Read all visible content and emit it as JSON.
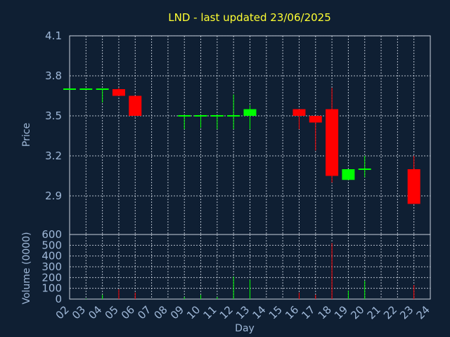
{
  "chart_data": {
    "type": "candlestick",
    "title": "LND - last updated 23/06/2025",
    "xlabel": "Day",
    "price_ylabel": "Price",
    "volume_ylabel": "Volume (0000)",
    "price_ylim": [
      3.55,
      4.1
    ],
    "price_yticks": [
      "4.1",
      "3.8",
      "3.5",
      "3.2",
      "2.9"
    ],
    "price_ytick_values": [
      4.1,
      3.8,
      3.5,
      3.2,
      2.9
    ],
    "volume_ylim": [
      0,
      600
    ],
    "volume_yticks": [
      "600",
      "500",
      "400",
      "300",
      "200",
      "100",
      "0"
    ],
    "volume_ytick_values": [
      600,
      500,
      400,
      300,
      200,
      100,
      0
    ],
    "x_ticks": [
      "02",
      "03",
      "04",
      "05",
      "06",
      "07",
      "08",
      "09",
      "10",
      "11",
      "12",
      "13",
      "14",
      "15",
      "16",
      "17",
      "18",
      "19",
      "20",
      "21",
      "22",
      "23",
      "24"
    ],
    "grid": true,
    "colors": {
      "up": "#00ff00",
      "down": "#ff0000",
      "title": "#ffff33",
      "background": "#0f1f33"
    },
    "candles": [
      {
        "day": "02",
        "open": 3.7,
        "high": 3.7,
        "low": 3.7,
        "close": 3.7,
        "volume": 0
      },
      {
        "day": "03",
        "open": 3.7,
        "high": 3.7,
        "low": 3.7,
        "close": 3.7,
        "volume": 5
      },
      {
        "day": "04",
        "open": 3.7,
        "high": 3.7,
        "low": 3.6,
        "close": 3.7,
        "volume": 40
      },
      {
        "day": "05",
        "open": 3.7,
        "high": 3.71,
        "low": 3.65,
        "close": 3.65,
        "volume": 90
      },
      {
        "day": "06",
        "open": 3.65,
        "high": 3.65,
        "low": 3.5,
        "close": 3.5,
        "volume": 60
      },
      {
        "day": "09",
        "open": 3.5,
        "high": 3.5,
        "low": 3.4,
        "close": 3.5,
        "volume": 20
      },
      {
        "day": "10",
        "open": 3.5,
        "high": 3.5,
        "low": 3.41,
        "close": 3.5,
        "volume": 40
      },
      {
        "day": "11",
        "open": 3.5,
        "high": 3.5,
        "low": 3.4,
        "close": 3.5,
        "volume": 20
      },
      {
        "day": "12",
        "open": 3.5,
        "high": 3.66,
        "low": 3.4,
        "close": 3.5,
        "volume": 210
      },
      {
        "day": "13",
        "open": 3.5,
        "high": 3.58,
        "low": 3.4,
        "close": 3.55,
        "volume": 180
      },
      {
        "day": "16",
        "open": 3.55,
        "high": 3.55,
        "low": 3.4,
        "close": 3.5,
        "volume": 60
      },
      {
        "day": "17",
        "open": 3.5,
        "high": 3.5,
        "low": 3.24,
        "close": 3.45,
        "volume": 40
      },
      {
        "day": "18",
        "open": 3.55,
        "high": 3.71,
        "low": 3.0,
        "close": 3.05,
        "volume": 520
      },
      {
        "day": "19",
        "open": 3.02,
        "high": 3.1,
        "low": 3.02,
        "close": 3.1,
        "volume": 80
      },
      {
        "day": "20",
        "open": 3.1,
        "high": 3.2,
        "low": 3.04,
        "close": 3.1,
        "volume": 170
      },
      {
        "day": "23",
        "open": 3.1,
        "high": 3.2,
        "low": 2.84,
        "close": 2.84,
        "volume": 130
      }
    ]
  }
}
